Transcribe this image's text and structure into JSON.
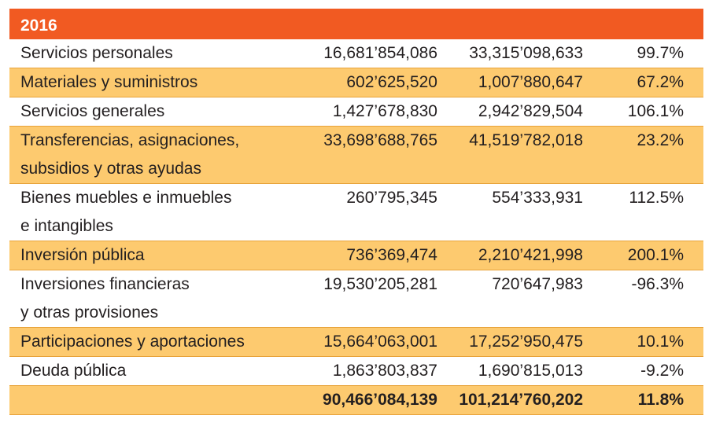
{
  "header": {
    "year": "2016"
  },
  "rows": [
    {
      "label": [
        "Servicios personales"
      ],
      "v1": "16,681’854,086",
      "v2": "33,315’098,633",
      "pct": "99.7%",
      "shaded": false
    },
    {
      "label": [
        "Materiales y suministros"
      ],
      "v1": "602’625,520",
      "v2": "1,007’880,647",
      "pct": "67.2%",
      "shaded": true
    },
    {
      "label": [
        "Servicios generales"
      ],
      "v1": "1,427’678,830",
      "v2": "2,942’829,504",
      "pct": "106.1%",
      "shaded": false
    },
    {
      "label": [
        "Transferencias, asignaciones,",
        "subsidios y otras ayudas"
      ],
      "v1": "33,698’688,765",
      "v2": "41,519’782,018",
      "pct": "23.2%",
      "shaded": true
    },
    {
      "label": [
        "Bienes muebles e inmuebles",
        "e intangibles"
      ],
      "v1": "260’795,345",
      "v2": "554’333,931",
      "pct": "112.5%",
      "shaded": false
    },
    {
      "label": [
        "Inversión pública"
      ],
      "v1": "736’369,474",
      "v2": "2,210’421,998",
      "pct": "200.1%",
      "shaded": true
    },
    {
      "label": [
        "Inversiones financieras",
        "y otras provisiones"
      ],
      "v1": "19,530’205,281",
      "v2": "720’647,983",
      "pct": "-96.3%",
      "shaded": false
    },
    {
      "label": [
        "Participaciones y aportaciones"
      ],
      "v1": "15,664’063,001",
      "v2": "17,252’950,475",
      "pct": "10.1%",
      "shaded": true
    },
    {
      "label": [
        "Deuda pública"
      ],
      "v1": "1,863’803,837",
      "v2": "1,690’815,013",
      "pct": "-9.2%",
      "shaded": false
    }
  ],
  "total": {
    "label": "",
    "v1": "90,466’084,139",
    "v2": "101,214’760,202",
    "pct": "11.8%"
  },
  "colors": {
    "header_bg": "#f15a22",
    "shade_bg": "#fdca6f",
    "rule": "#e8a33a"
  }
}
